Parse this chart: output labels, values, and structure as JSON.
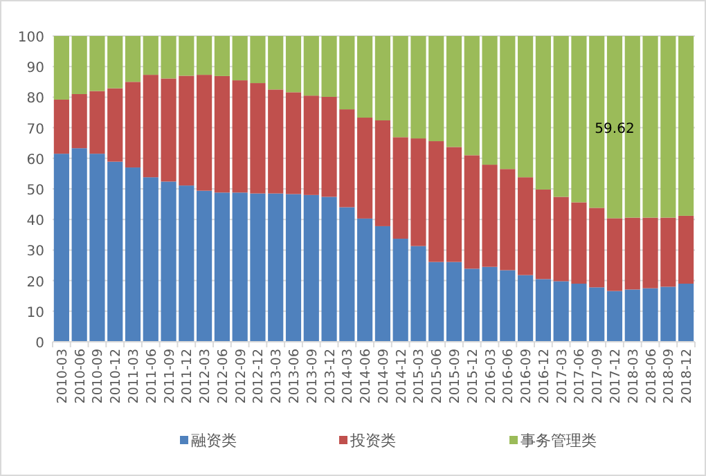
{
  "chart_data": {
    "type": "bar",
    "stacked": true,
    "categories": [
      "2010-03",
      "2010-06",
      "2010-09",
      "2010-12",
      "2011-03",
      "2011-06",
      "2011-09",
      "2011-12",
      "2012-03",
      "2012-06",
      "2012-09",
      "2012-12",
      "2013-03",
      "2013-06",
      "2013-09",
      "2013-12",
      "2014-03",
      "2014-06",
      "2014-09",
      "2014-12",
      "2015-03",
      "2015-06",
      "2015-09",
      "2015-12",
      "2016-03",
      "2016-06",
      "2016-09",
      "2016-12",
      "2017-03",
      "2017-06",
      "2017-09",
      "2017-12",
      "2018-03",
      "2018-06",
      "2018-09",
      "2018-12"
    ],
    "series": [
      {
        "name": "融资类",
        "color": "#4f81bd",
        "values": [
          61.5,
          63.3,
          61.5,
          58.9,
          57.0,
          53.8,
          52.4,
          51.1,
          49.4,
          48.8,
          48.8,
          48.5,
          48.5,
          48.3,
          48.0,
          47.4,
          44.0,
          40.3,
          37.8,
          33.7,
          31.3,
          26.1,
          26.1,
          23.9,
          24.5,
          23.4,
          21.8,
          20.5,
          19.8,
          19.0,
          17.8,
          16.6,
          17.1,
          17.5,
          18.0,
          19.0
        ]
      },
      {
        "name": "投资类",
        "color": "#c0504d",
        "values": [
          17.7,
          17.7,
          20.5,
          24.0,
          28.0,
          33.5,
          33.7,
          35.9,
          37.9,
          38.1,
          36.7,
          36.1,
          34.0,
          33.3,
          32.5,
          32.7,
          32.0,
          33.0,
          34.6,
          33.2,
          35.2,
          39.5,
          37.6,
          37.1,
          33.4,
          33.1,
          32.0,
          29.3,
          27.6,
          26.6,
          26.0,
          23.8,
          23.5,
          23.1,
          22.6,
          22.2
        ]
      },
      {
        "name": "事务管理类",
        "color": "#9bbb59",
        "values": [
          20.8,
          19.0,
          18.0,
          17.1,
          15.0,
          12.7,
          13.9,
          13.0,
          12.7,
          13.1,
          14.5,
          15.4,
          17.5,
          18.4,
          19.5,
          19.9,
          24.0,
          26.7,
          27.6,
          33.1,
          33.5,
          34.4,
          36.3,
          39.0,
          42.1,
          43.5,
          46.2,
          50.2,
          52.6,
          54.4,
          56.2,
          59.62,
          59.4,
          59.4,
          59.4,
          58.8
        ],
        "value_labels": [
          null,
          null,
          null,
          null,
          null,
          null,
          null,
          null,
          null,
          null,
          null,
          null,
          null,
          null,
          null,
          null,
          null,
          null,
          null,
          null,
          null,
          null,
          null,
          null,
          null,
          null,
          null,
          null,
          null,
          null,
          null,
          "59.62",
          null,
          null,
          null,
          null
        ]
      }
    ],
    "ylim": [
      0,
      100
    ],
    "yticks": [
      0,
      10,
      20,
      30,
      40,
      50,
      60,
      70,
      80,
      90,
      100
    ],
    "grid": "y",
    "legend": "bottom"
  }
}
